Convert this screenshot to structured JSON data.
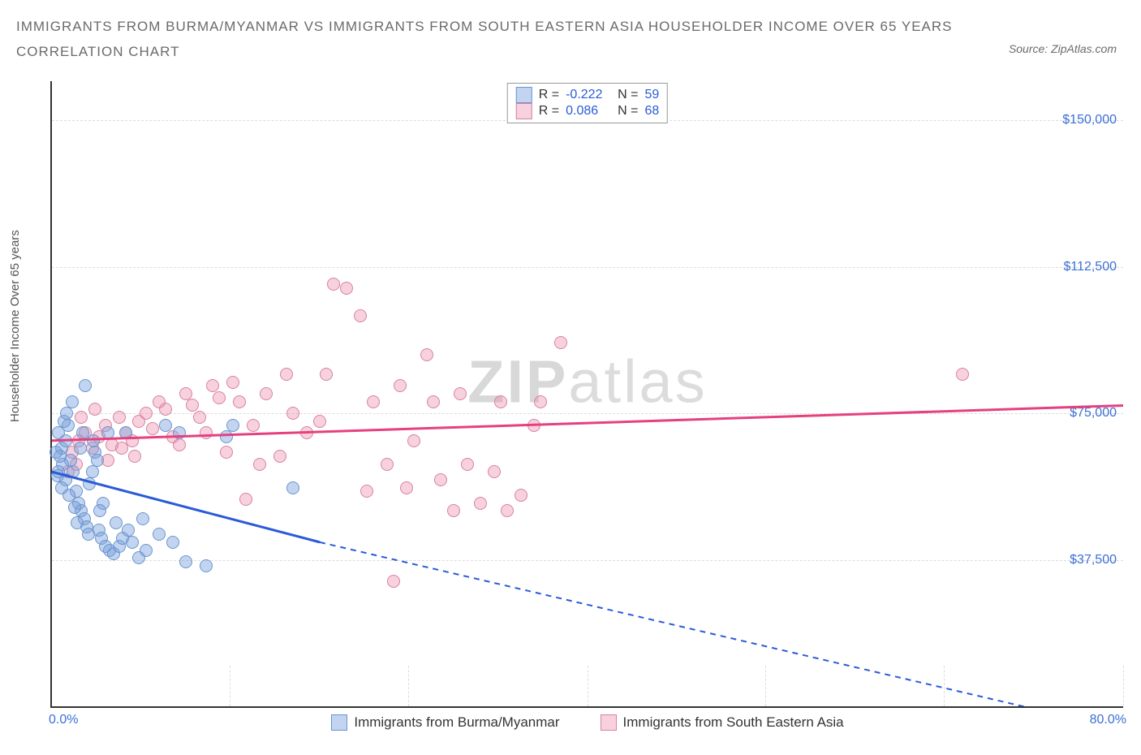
{
  "title_line1": "IMMIGRANTS FROM BURMA/MYANMAR VS IMMIGRANTS FROM SOUTH EASTERN ASIA HOUSEHOLDER INCOME OVER 65 YEARS",
  "title_line2": "CORRELATION CHART",
  "source_prefix": "Source: ",
  "source_name": "ZipAtlas.com",
  "y_axis_label": "Householder Income Over 65 years",
  "watermark_a": "ZIP",
  "watermark_b": "atlas",
  "chart": {
    "type": "scatter",
    "xlim": [
      0,
      80
    ],
    "ylim": [
      0,
      160000
    ],
    "x_ticks": [
      0,
      80
    ],
    "x_tick_labels": [
      "0.0%",
      "80.0%"
    ],
    "y_ticks": [
      37500,
      75000,
      112500,
      150000
    ],
    "y_tick_labels": [
      "$37,500",
      "$75,000",
      "$112,500",
      "$150,000"
    ],
    "v_grid": [
      13.3,
      26.6,
      40,
      53.3,
      66.6,
      80
    ],
    "background": "#ffffff",
    "grid_color": "#dcdcdc",
    "axis_color": "#333333",
    "label_color": "#3b6fd6",
    "series": [
      {
        "name": "Immigrants from Burma/Myanmar",
        "color_fill": "rgba(120,160,220,0.45)",
        "color_stroke": "#6a95cf",
        "trend_color": "#2a5bd7",
        "R": "-0.222",
        "N": "59",
        "trend": {
          "x1": 0,
          "y1": 60000,
          "x2_solid": 20,
          "y2_solid": 42000,
          "x2_dash": 80,
          "y2_dash": -6000
        },
        "points": [
          [
            0.5,
            70000
          ],
          [
            0.7,
            66000
          ],
          [
            1.0,
            68000
          ],
          [
            1.2,
            72000
          ],
          [
            1.4,
            63000
          ],
          [
            1.6,
            60000
          ],
          [
            1.8,
            55000
          ],
          [
            2.0,
            52000
          ],
          [
            2.2,
            50000
          ],
          [
            2.4,
            48000
          ],
          [
            2.6,
            46000
          ],
          [
            2.5,
            82000
          ],
          [
            2.8,
            57000
          ],
          [
            3.0,
            60000
          ],
          [
            3.2,
            65000
          ],
          [
            3.4,
            63000
          ],
          [
            3.5,
            45000
          ],
          [
            3.7,
            43000
          ],
          [
            4.0,
            41000
          ],
          [
            4.3,
            40000
          ],
          [
            4.6,
            39000
          ],
          [
            5.0,
            41000
          ],
          [
            5.3,
            43000
          ],
          [
            5.7,
            45000
          ],
          [
            6.0,
            42000
          ],
          [
            6.5,
            38000
          ],
          [
            7.0,
            40000
          ],
          [
            8.0,
            44000
          ],
          [
            9.0,
            42000
          ],
          [
            10.0,
            37000
          ],
          [
            11.5,
            36000
          ],
          [
            1.0,
            58000
          ],
          [
            1.3,
            54000
          ],
          [
            1.7,
            51000
          ],
          [
            0.8,
            62000
          ],
          [
            0.6,
            64000
          ],
          [
            2.1,
            66000
          ],
          [
            2.3,
            70000
          ],
          [
            3.1,
            68000
          ],
          [
            4.2,
            70000
          ],
          [
            5.5,
            70000
          ],
          [
            8.5,
            72000
          ],
          [
            9.5,
            70000
          ],
          [
            13.0,
            69000
          ],
          [
            13.5,
            72000
          ],
          [
            18.0,
            56000
          ],
          [
            0.9,
            73000
          ],
          [
            1.1,
            75000
          ],
          [
            1.5,
            78000
          ],
          [
            0.4,
            59000
          ],
          [
            3.8,
            52000
          ],
          [
            6.8,
            48000
          ],
          [
            4.8,
            47000
          ],
          [
            0.3,
            65000
          ],
          [
            0.5,
            60000
          ],
          [
            0.7,
            56000
          ],
          [
            1.9,
            47000
          ],
          [
            2.7,
            44000
          ],
          [
            3.6,
            50000
          ]
        ]
      },
      {
        "name": "Immigrants from South Eastern Asia",
        "color_fill": "rgba(235,140,170,0.40)",
        "color_stroke": "#d9829f",
        "trend_color": "#e6407e",
        "R": "0.086",
        "N": "68",
        "trend": {
          "x1": 0,
          "y1": 68000,
          "x2_solid": 80,
          "y2_solid": 77000,
          "x2_dash": 80,
          "y2_dash": 77000
        },
        "points": [
          [
            1.5,
            65000
          ],
          [
            2.0,
            68000
          ],
          [
            2.5,
            70000
          ],
          [
            3.0,
            66000
          ],
          [
            3.5,
            69000
          ],
          [
            4.0,
            72000
          ],
          [
            4.5,
            67000
          ],
          [
            5.0,
            74000
          ],
          [
            5.5,
            70000
          ],
          [
            6.0,
            68000
          ],
          [
            6.5,
            73000
          ],
          [
            7.0,
            75000
          ],
          [
            7.5,
            71000
          ],
          [
            8.0,
            78000
          ],
          [
            8.5,
            76000
          ],
          [
            9.0,
            69000
          ],
          [
            9.5,
            67000
          ],
          [
            10.0,
            80000
          ],
          [
            10.5,
            77000
          ],
          [
            11.0,
            74000
          ],
          [
            11.5,
            70000
          ],
          [
            12.0,
            82000
          ],
          [
            12.5,
            79000
          ],
          [
            13.0,
            65000
          ],
          [
            14.0,
            78000
          ],
          [
            14.5,
            53000
          ],
          [
            15.0,
            72000
          ],
          [
            15.5,
            62000
          ],
          [
            16.0,
            80000
          ],
          [
            17.0,
            64000
          ],
          [
            18.0,
            75000
          ],
          [
            19.0,
            70000
          ],
          [
            20.0,
            73000
          ],
          [
            21.0,
            108000
          ],
          [
            22.0,
            107000
          ],
          [
            23.0,
            100000
          ],
          [
            24.0,
            78000
          ],
          [
            25.0,
            62000
          ],
          [
            25.5,
            32000
          ],
          [
            26.0,
            82000
          ],
          [
            27.0,
            68000
          ],
          [
            28.0,
            90000
          ],
          [
            29.0,
            58000
          ],
          [
            30.0,
            50000
          ],
          [
            31.0,
            62000
          ],
          [
            32.0,
            52000
          ],
          [
            33.0,
            60000
          ],
          [
            34.0,
            50000
          ],
          [
            35.0,
            54000
          ],
          [
            36.0,
            72000
          ],
          [
            38.0,
            93000
          ],
          [
            20.5,
            85000
          ],
          [
            23.5,
            55000
          ],
          [
            26.5,
            56000
          ],
          [
            28.5,
            78000
          ],
          [
            30.5,
            80000
          ],
          [
            17.5,
            85000
          ],
          [
            13.5,
            83000
          ],
          [
            33.5,
            78000
          ],
          [
            36.5,
            78000
          ],
          [
            68.0,
            85000
          ],
          [
            2.2,
            74000
          ],
          [
            3.2,
            76000
          ],
          [
            4.2,
            63000
          ],
          [
            5.2,
            66000
          ],
          [
            6.2,
            64000
          ],
          [
            1.8,
            62000
          ],
          [
            1.2,
            60000
          ]
        ]
      }
    ]
  },
  "legend_top": {
    "R_label": "R =",
    "N_label": "N ="
  },
  "legend_bottom": {
    "a": "Immigrants from Burma/Myanmar",
    "b": "Immigrants from South Eastern Asia"
  }
}
